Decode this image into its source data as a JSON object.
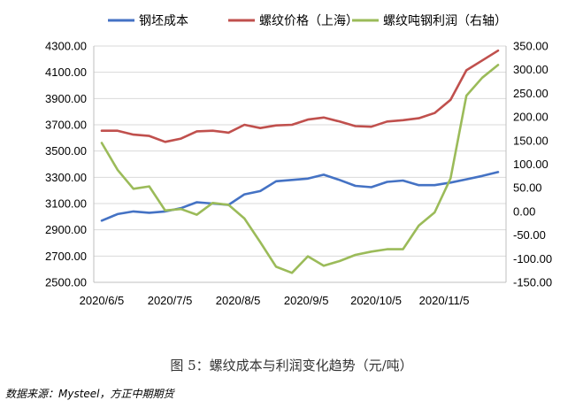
{
  "chart_data": {
    "type": "line",
    "x": [
      "2020/6/5",
      "2020/6/12",
      "2020/6/19",
      "2020/6/26",
      "2020/7/3",
      "2020/7/10",
      "2020/7/17",
      "2020/7/24",
      "2020/7/31",
      "2020/8/7",
      "2020/8/14",
      "2020/8/21",
      "2020/8/28",
      "2020/9/4",
      "2020/9/11",
      "2020/9/18",
      "2020/9/25",
      "2020/10/2",
      "2020/10/9",
      "2020/10/16",
      "2020/10/23",
      "2020/10/30",
      "2020/11/6",
      "2020/11/13",
      "2020/11/20",
      "2020/11/27"
    ],
    "x_tick_labels": [
      "2020/6/5",
      "2020/7/5",
      "2020/8/5",
      "2020/9/5",
      "2020/10/5",
      "2020/11/5"
    ],
    "x_tick_index": [
      0,
      4.3,
      8.6,
      12.9,
      17.3,
      21.6
    ],
    "series": [
      {
        "name": "钢坯成本",
        "axis": "left",
        "color": "#4472c4",
        "values": [
          2970,
          3020,
          3040,
          3030,
          3040,
          3065,
          3110,
          3100,
          3090,
          3170,
          3195,
          3270,
          3280,
          3290,
          3320,
          3280,
          3235,
          3225,
          3265,
          3275,
          3240,
          3240,
          3260,
          3285,
          3310,
          3340
        ]
      },
      {
        "name": "螺纹价格（上海）",
        "axis": "left",
        "color": "#c0504d",
        "values": [
          3655,
          3655,
          3625,
          3615,
          3570,
          3595,
          3650,
          3655,
          3640,
          3700,
          3675,
          3695,
          3700,
          3740,
          3755,
          3725,
          3690,
          3685,
          3725,
          3735,
          3750,
          3790,
          3890,
          4115,
          4190,
          4265
        ]
      },
      {
        "name": "螺纹吨钢利润（右轴）",
        "axis": "right",
        "color": "#9bbb59",
        "values": [
          145,
          88,
          48,
          53,
          2,
          5,
          -7,
          18,
          14,
          -15,
          -65,
          -117,
          -130,
          -95,
          -115,
          -105,
          -92,
          -85,
          -80,
          -80,
          -30,
          -2,
          70,
          245,
          283,
          310
        ]
      }
    ],
    "y_left": {
      "min": 2500,
      "max": 4300,
      "step": 200,
      "ticks": [
        "2500.00",
        "2700.00",
        "2900.00",
        "3100.00",
        "3300.00",
        "3500.00",
        "3700.00",
        "3900.00",
        "4100.00",
        "4300.00"
      ]
    },
    "y_right": {
      "min": -150,
      "max": 350,
      "step": 50,
      "ticks": [
        "-150.00",
        "-100.00",
        "-50.00",
        "0.00",
        "50.00",
        "100.00",
        "150.00",
        "200.00",
        "250.00",
        "300.00",
        "350.00"
      ]
    },
    "grid": true,
    "legend_position": "top"
  },
  "caption": "图 5：螺纹成本与利润变化趋势（元/吨）",
  "source": "数据来源：Mysteel，方正中期期货"
}
